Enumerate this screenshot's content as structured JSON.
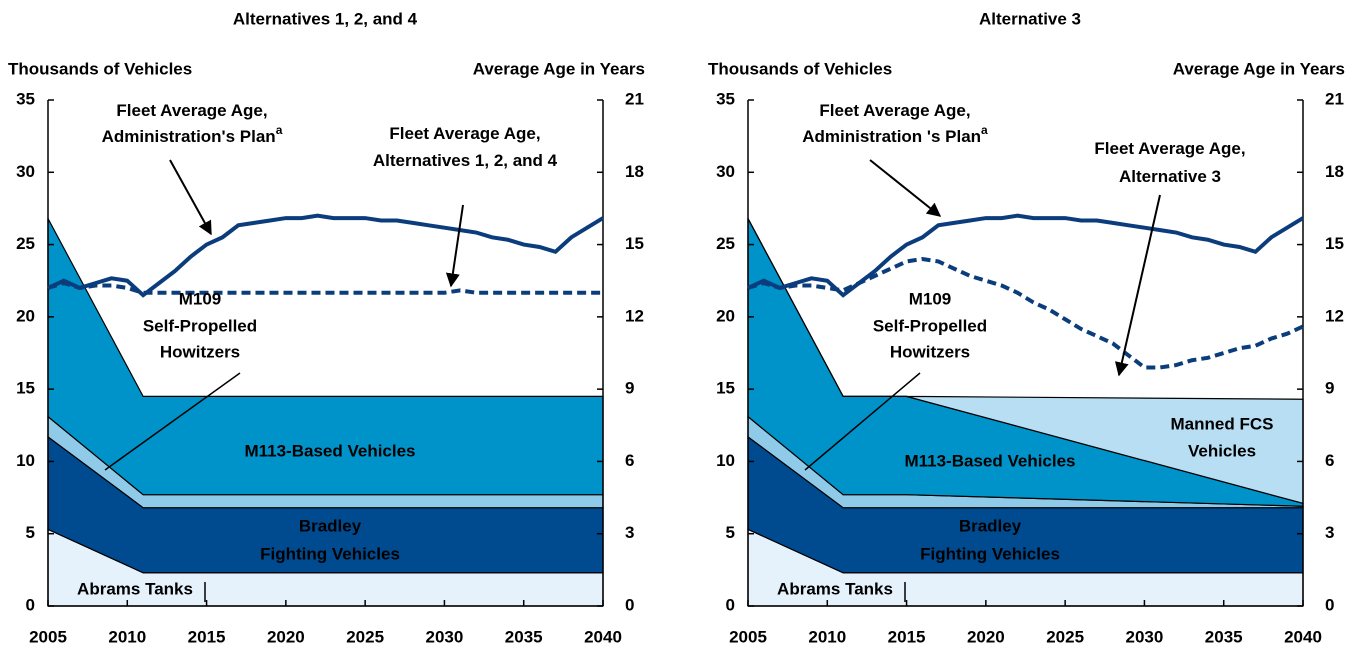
{
  "chart_data": [
    {
      "type": "stacked_area_line",
      "title": "Alternatives 1, 2, and 4",
      "y_label": "Thousands of Vehicles",
      "y2_label": "Average Age in Years",
      "xlim": [
        2005,
        2040
      ],
      "xticks": [
        2005,
        2010,
        2015,
        2020,
        2025,
        2030,
        2035,
        2040
      ],
      "ylim": [
        0,
        35
      ],
      "yticks": [
        0,
        5,
        10,
        15,
        20,
        25,
        30,
        35
      ],
      "y2lim": [
        0,
        21
      ],
      "y2ticks": [
        0,
        3,
        6,
        9,
        12,
        15,
        18,
        21
      ],
      "series": [
        {
          "name": [
            "Abrams Tanks"
          ],
          "color": "#e6f2fb",
          "x": [
            2005,
            2011,
            2015,
            2040
          ],
          "values": [
            5.3,
            2.3,
            2.3,
            2.3
          ]
        },
        {
          "name": [
            "Bradley",
            "Fighting Vehicles"
          ],
          "color": "#004a8f",
          "x": [
            2005,
            2011,
            2015,
            2040
          ],
          "values": [
            6.4,
            4.5,
            4.5,
            4.5
          ]
        },
        {
          "name": [
            "M109",
            "Self-Propelled",
            "Howitzers"
          ],
          "color": "#8fcbe8",
          "x": [
            2005,
            2011,
            2015,
            2040
          ],
          "values": [
            1.4,
            0.9,
            0.9,
            0.9
          ]
        },
        {
          "name": [
            "M113-Based Vehicles"
          ],
          "color": "#0093c9",
          "x": [
            2005,
            2011,
            2015,
            2040
          ],
          "values": [
            13.7,
            6.8,
            6.8,
            6.8
          ]
        }
      ],
      "lines": [
        {
          "name": [
            "Fleet Average Age,",
            "Administration's Plan"
          ],
          "note_marker": "a",
          "color": "#0b3d7d",
          "dashed": false,
          "axis": "y2",
          "x": [
            2005,
            2006,
            2007,
            2008,
            2009,
            2010,
            2011,
            2012,
            2013,
            2014,
            2015,
            2016,
            2017,
            2018,
            2019,
            2020,
            2021,
            2022,
            2023,
            2024,
            2025,
            2026,
            2027,
            2028,
            2029,
            2030,
            2031,
            2032,
            2033,
            2034,
            2035,
            2036,
            2037,
            2038,
            2039,
            2040
          ],
          "values": [
            13.2,
            13.5,
            13.2,
            13.4,
            13.6,
            13.5,
            12.9,
            13.4,
            13.9,
            14.5,
            15.0,
            15.3,
            15.8,
            15.9,
            16.0,
            16.1,
            16.1,
            16.2,
            16.1,
            16.1,
            16.1,
            16.0,
            16.0,
            15.9,
            15.8,
            15.7,
            15.6,
            15.5,
            15.3,
            15.2,
            15.0,
            14.9,
            14.7,
            15.3,
            15.7,
            16.1
          ]
        },
        {
          "name": [
            "Fleet Average Age,",
            "Alternatives 1, 2, and 4"
          ],
          "color": "#0b3d7d",
          "dashed": true,
          "axis": "y2",
          "x": [
            2005,
            2006,
            2007,
            2008,
            2009,
            2010,
            2011,
            2012,
            2013,
            2014,
            2015,
            2016,
            2017,
            2018,
            2019,
            2020,
            2021,
            2022,
            2023,
            2024,
            2025,
            2026,
            2027,
            2028,
            2029,
            2030,
            2031,
            2032,
            2033,
            2034,
            2035,
            2036,
            2037,
            2038,
            2039,
            2040
          ],
          "values": [
            13.2,
            13.4,
            13.2,
            13.3,
            13.3,
            13.2,
            13.0,
            13.0,
            13.0,
            13.0,
            13.0,
            13.0,
            13.0,
            13.0,
            13.0,
            13.0,
            13.0,
            13.0,
            13.0,
            13.0,
            13.0,
            13.0,
            13.0,
            13.0,
            13.0,
            13.0,
            13.1,
            13.0,
            13.0,
            13.0,
            13.0,
            13.0,
            13.0,
            13.0,
            13.0,
            13.0
          ]
        }
      ]
    },
    {
      "type": "stacked_area_line",
      "title": "Alternative 3",
      "y_label": "Thousands of Vehicles",
      "y2_label": "Average Age in Years",
      "xlim": [
        2005,
        2040
      ],
      "xticks": [
        2005,
        2010,
        2015,
        2020,
        2025,
        2030,
        2035,
        2040
      ],
      "ylim": [
        0,
        35
      ],
      "yticks": [
        0,
        5,
        10,
        15,
        20,
        25,
        30,
        35
      ],
      "y2lim": [
        0,
        21
      ],
      "y2ticks": [
        0,
        3,
        6,
        9,
        12,
        15,
        18,
        21
      ],
      "series": [
        {
          "name": [
            "Abrams Tanks"
          ],
          "color": "#e6f2fb",
          "x": [
            2005,
            2011,
            2015,
            2040
          ],
          "values": [
            5.3,
            2.3,
            2.3,
            2.3
          ]
        },
        {
          "name": [
            "Bradley",
            "Fighting Vehicles"
          ],
          "color": "#004a8f",
          "x": [
            2005,
            2011,
            2015,
            2040
          ],
          "values": [
            6.4,
            4.5,
            4.5,
            4.5
          ]
        },
        {
          "name": [
            "M109",
            "Self-Propelled",
            "Howitzers"
          ],
          "color": "#8fcbe8",
          "x": [
            2005,
            2011,
            2015,
            2040
          ],
          "values": [
            1.4,
            0.9,
            0.9,
            0.1
          ]
        },
        {
          "name": [
            "M113-Based Vehicles"
          ],
          "color": "#0093c9",
          "x": [
            2005,
            2011,
            2015,
            2040
          ],
          "values": [
            13.7,
            6.8,
            6.8,
            0.2
          ]
        },
        {
          "name": [
            "Manned FCS",
            "Vehicles"
          ],
          "color": "#b7def3",
          "x": [
            2005,
            2011,
            2015,
            2040
          ],
          "values": [
            0,
            0,
            0,
            7.2
          ]
        }
      ],
      "lines": [
        {
          "name": [
            "Fleet Average Age,",
            "Administration 's Plan"
          ],
          "note_marker": "a",
          "color": "#0b3d7d",
          "dashed": false,
          "axis": "y2",
          "x": [
            2005,
            2006,
            2007,
            2008,
            2009,
            2010,
            2011,
            2012,
            2013,
            2014,
            2015,
            2016,
            2017,
            2018,
            2019,
            2020,
            2021,
            2022,
            2023,
            2024,
            2025,
            2026,
            2027,
            2028,
            2029,
            2030,
            2031,
            2032,
            2033,
            2034,
            2035,
            2036,
            2037,
            2038,
            2039,
            2040
          ],
          "values": [
            13.2,
            13.5,
            13.2,
            13.4,
            13.6,
            13.5,
            12.9,
            13.4,
            13.9,
            14.5,
            15.0,
            15.3,
            15.8,
            15.9,
            16.0,
            16.1,
            16.1,
            16.2,
            16.1,
            16.1,
            16.1,
            16.0,
            16.0,
            15.9,
            15.8,
            15.7,
            15.6,
            15.5,
            15.3,
            15.2,
            15.0,
            14.9,
            14.7,
            15.3,
            15.7,
            16.1
          ]
        },
        {
          "name": [
            "Fleet Average Age,",
            "Alternative 3"
          ],
          "color": "#0b3d7d",
          "dashed": true,
          "axis": "y2",
          "x": [
            2005,
            2006,
            2007,
            2008,
            2009,
            2010,
            2011,
            2012,
            2013,
            2014,
            2015,
            2016,
            2017,
            2018,
            2019,
            2020,
            2021,
            2022,
            2023,
            2024,
            2025,
            2026,
            2027,
            2028,
            2029,
            2030,
            2031,
            2032,
            2033,
            2034,
            2035,
            2036,
            2037,
            2038,
            2039,
            2040
          ],
          "values": [
            13.2,
            13.4,
            13.2,
            13.3,
            13.3,
            13.2,
            13.1,
            13.4,
            13.7,
            14.0,
            14.3,
            14.4,
            14.3,
            14.0,
            13.7,
            13.5,
            13.3,
            13.0,
            12.6,
            12.3,
            11.9,
            11.5,
            11.2,
            10.9,
            10.4,
            9.9,
            9.9,
            10.0,
            10.2,
            10.3,
            10.5,
            10.7,
            10.8,
            11.1,
            11.3,
            11.6
          ]
        }
      ]
    }
  ]
}
